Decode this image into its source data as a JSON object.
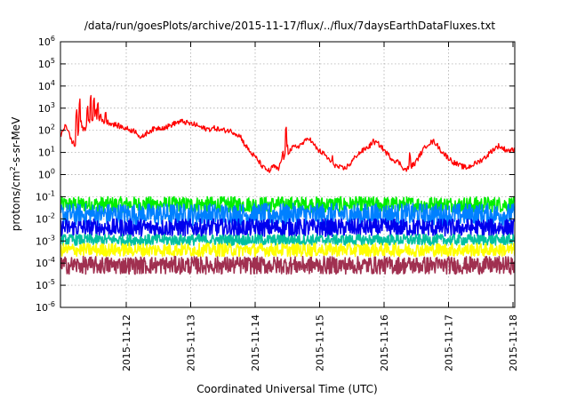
{
  "chart_data": {
    "type": "line",
    "title": "/data/run/goesPlots/archive/2015-11-17/flux/../flux/7daysEarthDataFluxes.txt",
    "xlabel": "Coordinated Universal Time (UTC)",
    "ylabel": {
      "base": "protons/cm",
      "sup": "2",
      "rest": "-s-sr-MeV"
    },
    "x_ticks": [
      "2015-11-12",
      "2015-11-13",
      "2015-11-14",
      "2015-11-15",
      "2015-11-16",
      "2015-11-17",
      "2015-11-18"
    ],
    "y_ticks": [
      {
        "base": "10",
        "exp": "6"
      },
      {
        "base": "10",
        "exp": "5"
      },
      {
        "base": "10",
        "exp": "4"
      },
      {
        "base": "10",
        "exp": "3"
      },
      {
        "base": "10",
        "exp": "2"
      },
      {
        "base": "10",
        "exp": "1"
      },
      {
        "base": "10",
        "exp": "0"
      },
      {
        "base": "10",
        "exp": "-1"
      },
      {
        "base": "10",
        "exp": "-2"
      },
      {
        "base": "10",
        "exp": "-3"
      },
      {
        "base": "10",
        "exp": "-4"
      },
      {
        "base": "10",
        "exp": "-5"
      },
      {
        "base": "10",
        "exp": "-6"
      }
    ],
    "xlim": [
      "2015-11-11 02:00",
      "2015-11-18 00:00"
    ],
    "ylim": [
      1e-06,
      1000000.0
    ],
    "yscale": "log",
    "grid": true,
    "legend": "none",
    "series": [
      {
        "color": "#ff0000",
        "base_log": [
          [
            0.0,
            1.7
          ],
          [
            0.08,
            2.3
          ],
          [
            0.16,
            1.6
          ],
          [
            0.25,
            1.2
          ],
          [
            0.3,
            2.5
          ],
          [
            0.36,
            2.0
          ],
          [
            0.45,
            2.4
          ],
          [
            0.52,
            2.6
          ],
          [
            0.6,
            2.5
          ],
          [
            0.65,
            2.4
          ],
          [
            0.7,
            2.4
          ],
          [
            0.8,
            2.3
          ],
          [
            0.9,
            2.2
          ],
          [
            1.0,
            2.1
          ],
          [
            1.1,
            2.0
          ],
          [
            1.18,
            1.95
          ],
          [
            1.25,
            1.6
          ],
          [
            1.3,
            1.8
          ],
          [
            1.4,
            2.0
          ],
          [
            1.5,
            2.1
          ],
          [
            1.65,
            2.15
          ],
          [
            1.8,
            2.35
          ],
          [
            1.9,
            2.4
          ],
          [
            2.0,
            2.3
          ],
          [
            2.1,
            2.25
          ],
          [
            2.2,
            2.1
          ],
          [
            2.3,
            2.05
          ],
          [
            2.4,
            2.1
          ],
          [
            2.5,
            2.0
          ],
          [
            2.6,
            2.0
          ],
          [
            2.7,
            1.9
          ],
          [
            2.8,
            1.7
          ],
          [
            2.85,
            1.4
          ],
          [
            2.95,
            1.0
          ],
          [
            3.05,
            0.7
          ],
          [
            3.15,
            0.3
          ],
          [
            3.25,
            0.15
          ],
          [
            3.3,
            0.4
          ],
          [
            3.38,
            0.2
          ],
          [
            3.42,
            0.6
          ],
          [
            3.5,
            0.9
          ],
          [
            3.6,
            1.2
          ],
          [
            3.7,
            1.3
          ],
          [
            3.8,
            1.5
          ],
          [
            3.85,
            1.7
          ],
          [
            3.9,
            1.45
          ],
          [
            4.0,
            1.1
          ],
          [
            4.1,
            0.9
          ],
          [
            4.2,
            0.55
          ],
          [
            4.3,
            0.35
          ],
          [
            4.4,
            0.25
          ],
          [
            4.5,
            0.5
          ],
          [
            4.6,
            0.9
          ],
          [
            4.7,
            1.1
          ],
          [
            4.8,
            1.3
          ],
          [
            4.85,
            1.5
          ],
          [
            4.95,
            1.35
          ],
          [
            5.05,
            1.0
          ],
          [
            5.15,
            0.7
          ],
          [
            5.25,
            0.55
          ],
          [
            5.35,
            0.2
          ],
          [
            5.4,
            0.3
          ],
          [
            5.5,
            0.5
          ],
          [
            5.6,
            1.0
          ],
          [
            5.7,
            1.4
          ],
          [
            5.8,
            1.5
          ],
          [
            5.85,
            1.3
          ],
          [
            5.9,
            1.1
          ],
          [
            6.0,
            0.8
          ],
          [
            6.1,
            0.55
          ],
          [
            6.2,
            0.4
          ],
          [
            6.3,
            0.3
          ],
          [
            6.4,
            0.45
          ],
          [
            6.5,
            0.6
          ],
          [
            6.6,
            0.8
          ],
          [
            6.7,
            1.1
          ],
          [
            6.8,
            1.3
          ],
          [
            6.85,
            1.2
          ],
          [
            6.93,
            1.1
          ]
        ],
        "spikes": [
          [
            0.25,
            3.0
          ],
          [
            0.3,
            3.5
          ],
          [
            0.32,
            1.5
          ],
          [
            0.42,
            3.2
          ],
          [
            0.47,
            3.7
          ],
          [
            0.52,
            3.6
          ],
          [
            0.55,
            3.1
          ],
          [
            0.58,
            3.4
          ],
          [
            0.62,
            2.9
          ],
          [
            0.7,
            3.0
          ],
          [
            3.45,
            1.2
          ],
          [
            3.5,
            2.3
          ],
          [
            3.52,
            1.5
          ],
          [
            4.22,
            0.9
          ],
          [
            4.58,
            0.8
          ],
          [
            5.1,
            0.8
          ],
          [
            5.42,
            1.1
          ],
          [
            6.15,
            0.6
          ],
          [
            6.55,
            0.9
          ]
        ],
        "noise": 0.12
      },
      {
        "color": "#00ee00",
        "band": [
          -1.7,
          -1.0
        ],
        "center": -1.35,
        "noise": 0.3
      },
      {
        "color": "#0080ff",
        "band": [
          -2.3,
          -1.3
        ],
        "center": -1.8,
        "noise": 0.35
      },
      {
        "color": "#0000ee",
        "band": [
          -2.8,
          -2.0
        ],
        "center": -2.4,
        "noise": 0.3
      },
      {
        "color": "#00c0a0",
        "band": [
          -3.2,
          -2.7
        ],
        "center": -2.9,
        "noise": 0.2
      },
      {
        "color": "#ffff00",
        "band": [
          -3.7,
          -3.1
        ],
        "center": -3.4,
        "noise": 0.2
      },
      {
        "color": "#a03050",
        "band": [
          -4.5,
          -3.7
        ],
        "center": -4.1,
        "noise": 0.25
      }
    ]
  }
}
